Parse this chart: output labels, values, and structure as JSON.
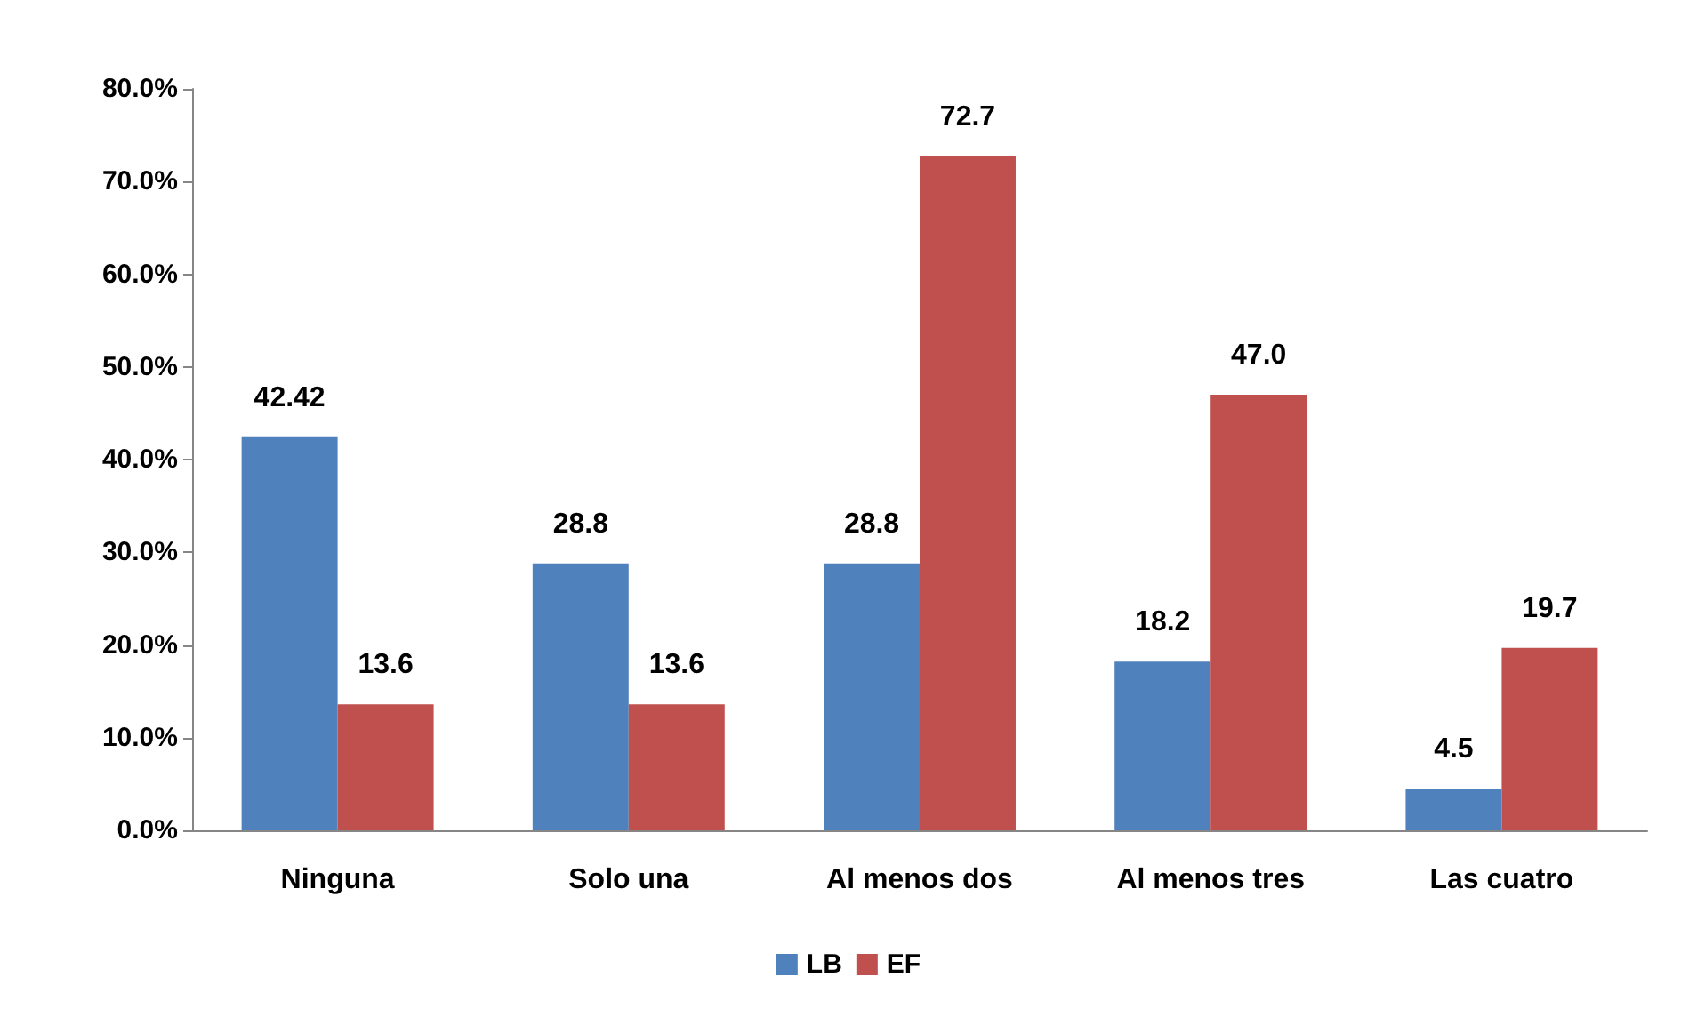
{
  "chart_data": {
    "type": "bar",
    "categories": [
      "Ninguna",
      "Solo una",
      "Al menos dos",
      "Al menos tres",
      "Las cuatro"
    ],
    "series": [
      {
        "name": "LB",
        "color": "#4f81bd",
        "values": [
          42.42,
          28.8,
          28.8,
          18.2,
          4.5
        ],
        "value_labels": [
          "42.42",
          "28.8",
          "28.8",
          "18.2",
          "4.5"
        ]
      },
      {
        "name": "EF",
        "color": "#c0504d",
        "values": [
          13.6,
          13.6,
          72.7,
          47.0,
          19.7
        ],
        "value_labels": [
          "13.6",
          "13.6",
          "72.7",
          "47.0",
          "19.7"
        ]
      }
    ],
    "ylim": [
      0,
      80
    ],
    "yticks": [
      {
        "value": 0,
        "label": "0.0%"
      },
      {
        "value": 10,
        "label": "10.0%"
      },
      {
        "value": 20,
        "label": "20.0%"
      },
      {
        "value": 30,
        "label": "30.0%"
      },
      {
        "value": 40,
        "label": "40.0%"
      },
      {
        "value": 50,
        "label": "50.0%"
      },
      {
        "value": 60,
        "label": "60.0%"
      },
      {
        "value": 70,
        "label": "70.0%"
      },
      {
        "value": 80,
        "label": "80.0%"
      }
    ],
    "grid": false,
    "legend": "bottom"
  }
}
